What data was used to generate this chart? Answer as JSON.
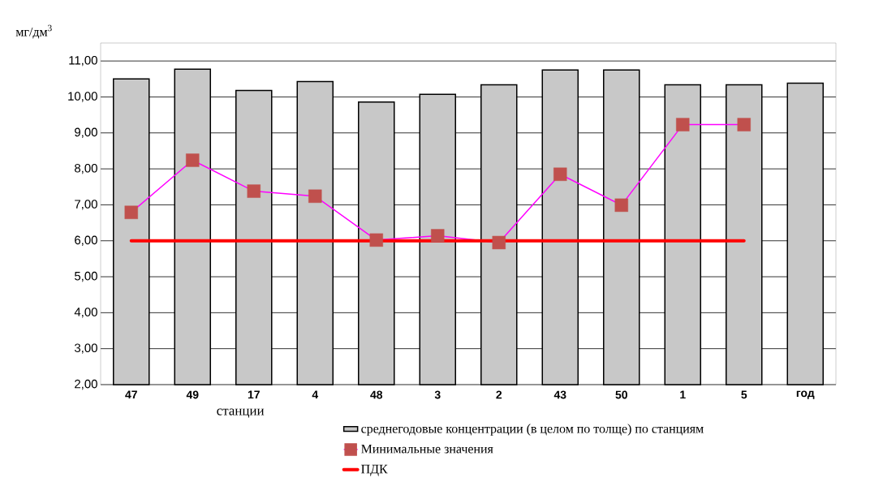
{
  "chart_data": {
    "type": "bar",
    "ylabel": "мг/дм$^{3}$",
    "xlabel": "станции",
    "categories": [
      "47",
      "49",
      "17",
      "4",
      "48",
      "3",
      "2",
      "43",
      "50",
      "1",
      "5",
      "год"
    ],
    "series": [
      {
        "name": "среднегодовые концентрации (в целом по толще) по станциям",
        "color": "#c8c8c8",
        "values": [
          10.5,
          10.77,
          10.18,
          10.43,
          9.86,
          10.07,
          10.34,
          10.75,
          10.75,
          10.34,
          10.34,
          10.38
        ]
      },
      {
        "name": "Минимальные значения",
        "type": "line",
        "color": "#ff00ff",
        "marker": "square",
        "colors": [
          "#c0504d",
          "#c0504d",
          "#c0504d",
          "#c0504d",
          "#c0504d",
          "#c0504d",
          "#c0504d",
          "#c0504d",
          "#c0504d",
          "#c0504d",
          "#c0504d",
          "#c0504d"
        ],
        "values": [
          6.79,
          8.24,
          7.38,
          7.24,
          6.02,
          6.14,
          5.95,
          7.85,
          6.99,
          9.23,
          9.23,
          null
        ]
      },
      {
        "name": "ПДК",
        "type": "line",
        "color": "#ff0000",
        "marker": "none",
        "values": [
          6,
          6,
          6,
          6,
          6,
          6,
          6,
          6,
          6,
          6,
          6,
          null
        ]
      }
    ],
    "ylim": [
      2,
      11.5
    ],
    "yticks": [
      {
        "value": 2,
        "label": "2,00"
      },
      {
        "value": 3,
        "label": "3,00"
      },
      {
        "value": 4,
        "label": "4,00"
      },
      {
        "value": 5,
        "label": "5,00"
      },
      {
        "value": 6,
        "label": "6,00"
      },
      {
        "value": 7,
        "label": "7,00"
      },
      {
        "value": 8,
        "label": "8,00"
      },
      {
        "value": 9,
        "label": "9,00"
      },
      {
        "value": 10,
        "label": "10,00"
      },
      {
        "value": 11,
        "label": "11,00"
      }
    ],
    "grid": "y",
    "legend": "bottom"
  }
}
